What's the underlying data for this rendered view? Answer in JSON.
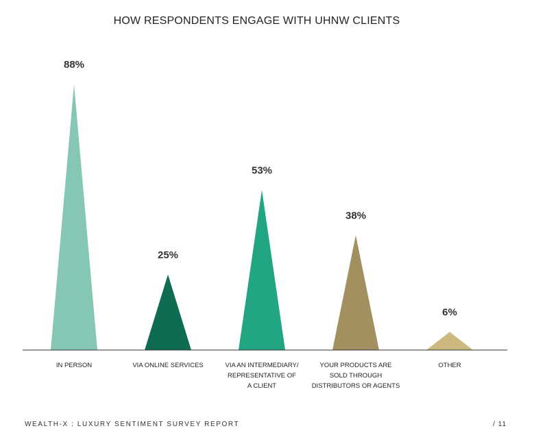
{
  "chart_data": {
    "type": "bar",
    "title": "HOW RESPONDENTS ENGAGE WITH UHNW CLIENTS",
    "categories": [
      [
        "IN PERSON"
      ],
      [
        "VIA ONLINE SERVICES"
      ],
      [
        "VIA AN INTERMEDIARY/",
        "REPRESENTATIVE OF",
        "A CLIENT"
      ],
      [
        "YOUR PRODUCTS ARE",
        "SOLD THROUGH",
        "DISTRIBUTORS OR AGENTS"
      ],
      [
        "OTHER"
      ]
    ],
    "values": [
      88,
      25,
      53,
      38,
      6
    ],
    "value_labels": [
      "88%",
      "25%",
      "53%",
      "38%",
      "6%"
    ],
    "colors": [
      "#86c6b4",
      "#0f6b52",
      "#22a583",
      "#a29061",
      "#cbb981"
    ],
    "ylim": [
      0,
      100
    ],
    "grid": false,
    "legend": "none"
  },
  "footer": {
    "left": "WEALTH-X : LUXURY SENTIMENT SURVEY REPORT",
    "right": "/ 11"
  }
}
